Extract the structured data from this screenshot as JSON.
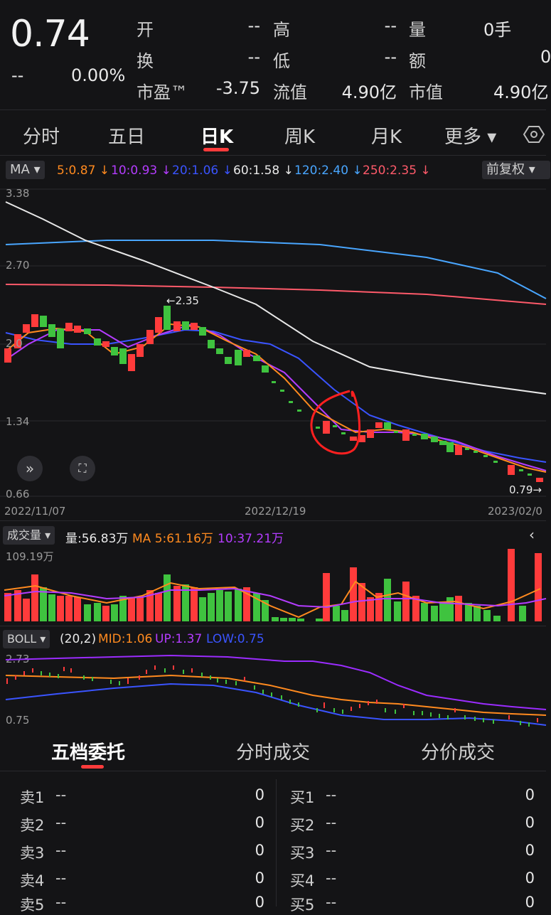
{
  "quote": {
    "price": "0.74",
    "change": "--",
    "change_pct": "0.00%",
    "fields": [
      {
        "label": "开",
        "value": "--"
      },
      {
        "label": "高",
        "value": "--"
      },
      {
        "label": "量",
        "value": "0手"
      },
      {
        "label": "换",
        "value": "--"
      },
      {
        "label": "低",
        "value": "--"
      },
      {
        "label": "额",
        "value": "0"
      },
      {
        "label": "市盈™",
        "value": "-3.75"
      },
      {
        "label": "流值",
        "value": "4.90亿"
      },
      {
        "label": "市值",
        "value": "4.90亿"
      }
    ]
  },
  "tabs": {
    "items": [
      "分时",
      "五日",
      "日K",
      "周K",
      "月K",
      "更多 ▾"
    ],
    "active": "日K"
  },
  "ma_bar": {
    "selector": "MA ▾",
    "items": [
      {
        "label": "5:0.87 ↓",
        "color": "#ff8a1f"
      },
      {
        "label": "10:0.93 ↓",
        "color": "#b43cff"
      },
      {
        "label": "20:1.06 ↓",
        "color": "#3a54ff"
      },
      {
        "label": "60:1.58 ↓",
        "color": "#e8e8e8"
      },
      {
        "label": "120:2.40 ↓",
        "color": "#49a6ff"
      },
      {
        "label": "250:2.35 ↓",
        "color": "#ff5a6a"
      }
    ],
    "adjust": "前复权 ▾"
  },
  "kline": {
    "y_labels": [
      "3.38",
      "2.70",
      "2.0",
      "1.34",
      "0.66"
    ],
    "x_labels": [
      "2022/11/07",
      "2022/12/19",
      "2023/02/0"
    ],
    "high_marker": "←2.35",
    "low_marker": "0.79→"
  },
  "volume_bar": {
    "selector": "成交量 ▾",
    "label": "量:56.83万",
    "ma5": "MA 5:61.16万",
    "ma10": "10:37.21万",
    "max_label": "109.19万"
  },
  "boll_bar": {
    "selector": "BOLL ▾",
    "params": "(20,2)",
    "mid": "MID:1.06",
    "up": "UP:1.37",
    "low": "LOW:0.75",
    "top_label": "2.73",
    "bottom_label": "0.75"
  },
  "orderbook": {
    "tabs": [
      "五档委托",
      "分时成交",
      "分价成交"
    ],
    "active": "五档委托",
    "sell": [
      {
        "label": "卖1",
        "price": "--",
        "qty": "0"
      },
      {
        "label": "卖2",
        "price": "--",
        "qty": "0"
      },
      {
        "label": "卖3",
        "price": "--",
        "qty": "0"
      },
      {
        "label": "卖4",
        "price": "--",
        "qty": "0"
      },
      {
        "label": "卖5",
        "price": "--",
        "qty": "0"
      }
    ],
    "buy": [
      {
        "label": "买1",
        "price": "--",
        "qty": "0"
      },
      {
        "label": "买2",
        "price": "--",
        "qty": "0"
      },
      {
        "label": "买3",
        "price": "--",
        "qty": "0"
      },
      {
        "label": "买4",
        "price": "--",
        "qty": "0"
      },
      {
        "label": "买5",
        "price": "--",
        "qty": "0"
      }
    ]
  },
  "colors": {
    "up": "#ff3b3b",
    "down": "#3fc33f",
    "accent": "#ff3b3b"
  }
}
